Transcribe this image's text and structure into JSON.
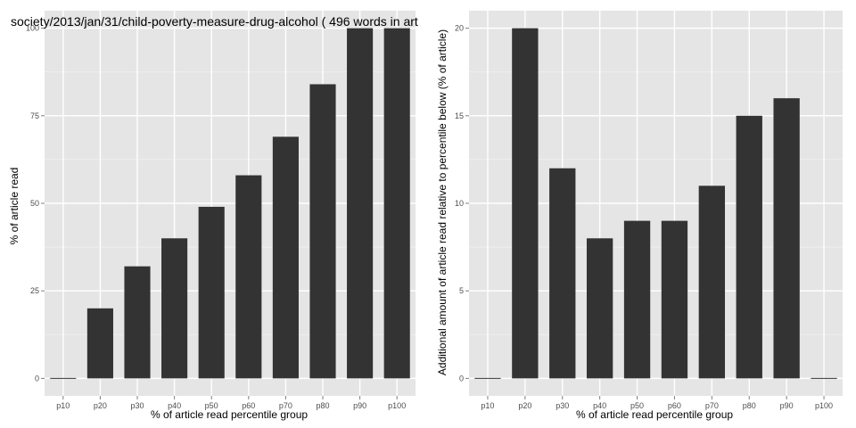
{
  "chart_data": [
    {
      "type": "bar",
      "title": "society/2013/jan/31/child-poverty-measure-drug-alcohol ( 496 words in art",
      "xlabel": "% of article read percentile group",
      "ylabel": "% of article read",
      "categories": [
        "p10",
        "p20",
        "p30",
        "p40",
        "p50",
        "p60",
        "p70",
        "p80",
        "p90",
        "p100"
      ],
      "values": [
        0,
        20,
        32,
        40,
        49,
        58,
        69,
        84,
        100,
        100
      ],
      "ylim": [
        -5,
        105
      ],
      "yticks": [
        0,
        25,
        50,
        75,
        100
      ],
      "grid": true,
      "colors": {
        "bar": "#333333",
        "panel": "#e5e5e5",
        "grid": "#ffffff",
        "gridMinor": "#f2f2f2"
      }
    },
    {
      "type": "bar",
      "title": "",
      "xlabel": "% of article read percentile group",
      "ylabel": "Additional amount of article read relative to percentile below (% of article)",
      "categories": [
        "p10",
        "p20",
        "p30",
        "p40",
        "p50",
        "p60",
        "p70",
        "p80",
        "p90",
        "p100"
      ],
      "values": [
        0,
        20,
        12,
        8,
        9,
        9,
        11,
        15,
        16,
        0
      ],
      "ylim": [
        -1,
        21
      ],
      "yticks": [
        0,
        5,
        10,
        15,
        20
      ],
      "grid": true,
      "colors": {
        "bar": "#333333",
        "panel": "#e5e5e5",
        "grid": "#ffffff",
        "gridMinor": "#f2f2f2"
      }
    }
  ]
}
